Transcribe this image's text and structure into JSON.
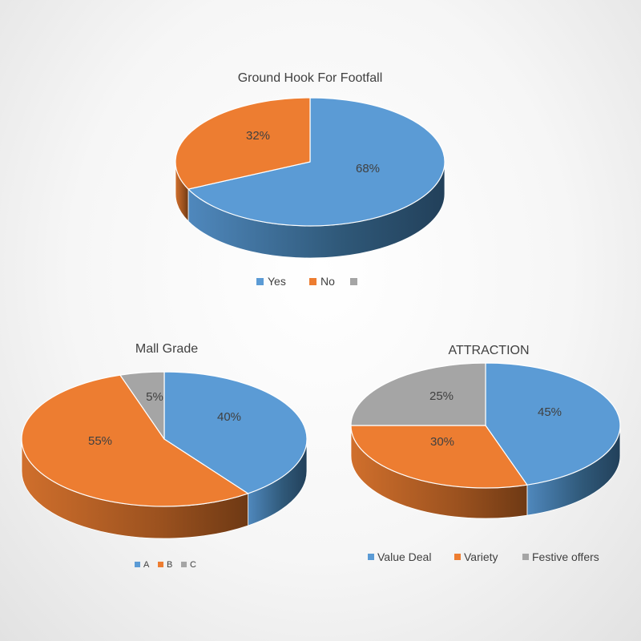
{
  "colors": {
    "blue": "#5b9bd5",
    "orange": "#ed7d31",
    "gray": "#a5a5a5",
    "text": "#404040"
  },
  "chart_data": [
    {
      "type": "pie",
      "title": "Ground Hook For Footfall",
      "legend_position": "bottom",
      "slices": [
        {
          "label": "Yes",
          "value": 68,
          "display": "68%",
          "color": "#5b9bd5"
        },
        {
          "label": "No",
          "value": 32,
          "display": "32%",
          "color": "#ed7d31"
        },
        {
          "label": "",
          "value": 0,
          "display": "",
          "color": "#a5a5a5"
        }
      ]
    },
    {
      "type": "pie",
      "title": "Mall Grade",
      "legend_position": "bottom",
      "slices": [
        {
          "label": "A",
          "value": 40,
          "display": "40%",
          "color": "#5b9bd5"
        },
        {
          "label": "B",
          "value": 55,
          "display": "55%",
          "color": "#ed7d31"
        },
        {
          "label": "C",
          "value": 5,
          "display": "5%",
          "color": "#a5a5a5"
        }
      ]
    },
    {
      "type": "pie",
      "title": "ATTRACTION",
      "legend_position": "bottom",
      "slices": [
        {
          "label": "Value Deal",
          "value": 45,
          "display": "45%",
          "color": "#5b9bd5"
        },
        {
          "label": "Variety",
          "value": 30,
          "display": "30%",
          "color": "#ed7d31"
        },
        {
          "label": "Festive offers",
          "value": 25,
          "display": "25%",
          "color": "#a5a5a5"
        }
      ]
    }
  ]
}
